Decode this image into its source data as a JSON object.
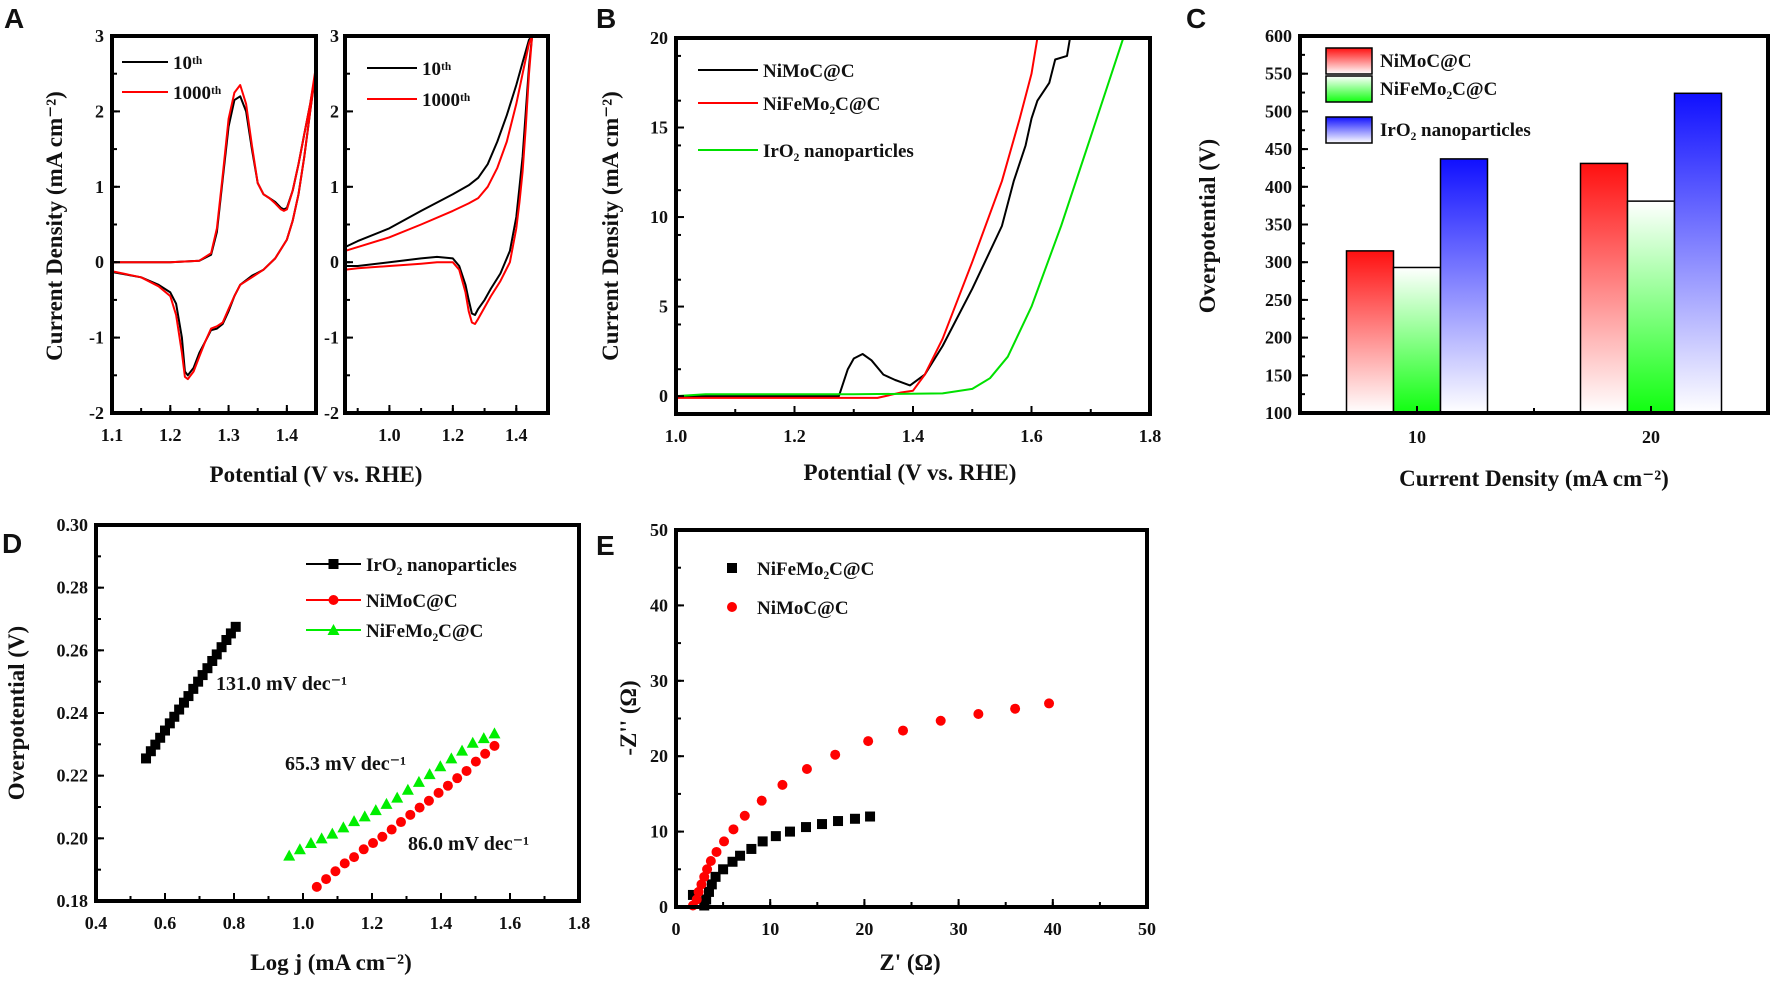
{
  "chart_data": [
    {
      "panel": "A",
      "type": "line",
      "xlabel": "Potential (V vs. RHE)",
      "ylabel": "Current Density (mA cm⁻²)",
      "xlim": [
        1.1,
        1.45
      ],
      "ylim": [
        -2,
        3
      ],
      "xticks": [
        "1.1",
        "1.2",
        "1.3",
        "1.4"
      ],
      "yticks": [
        "-2",
        "-1",
        "0",
        "1",
        "2",
        "3"
      ],
      "grid": false,
      "legend": "top-left",
      "series": [
        {
          "name": "10ᵗʰ",
          "color": "#000000",
          "x": [
            1.1,
            1.15,
            1.2,
            1.25,
            1.27,
            1.28,
            1.29,
            1.3,
            1.31,
            1.32,
            1.33,
            1.34,
            1.35,
            1.36,
            1.37,
            1.38,
            1.39,
            1.395,
            1.4,
            1.41,
            1.42,
            1.43,
            1.44,
            1.45,
            1.44,
            1.43,
            1.42,
            1.41,
            1.4,
            1.38,
            1.36,
            1.34,
            1.32,
            1.31,
            1.3,
            1.29,
            1.28,
            1.27,
            1.26,
            1.25,
            1.24,
            1.23,
            1.225,
            1.22,
            1.21,
            1.2,
            1.18,
            1.15,
            1.1
          ],
          "y": [
            0,
            0,
            0,
            0.02,
            0.1,
            0.4,
            1.1,
            1.8,
            2.15,
            2.2,
            2.0,
            1.5,
            1.05,
            0.9,
            0.85,
            0.8,
            0.72,
            0.7,
            0.72,
            0.95,
            1.3,
            1.7,
            2.1,
            2.55,
            2.0,
            1.4,
            0.9,
            0.55,
            0.3,
            0.05,
            -0.1,
            -0.18,
            -0.3,
            -0.45,
            -0.65,
            -0.82,
            -0.88,
            -0.9,
            -1.05,
            -1.2,
            -1.4,
            -1.5,
            -1.45,
            -1.0,
            -0.55,
            -0.4,
            -0.3,
            -0.2,
            -0.13
          ]
        },
        {
          "name": "1000ᵗʰ",
          "color": "#ff0000",
          "x": [
            1.1,
            1.15,
            1.2,
            1.25,
            1.27,
            1.28,
            1.29,
            1.3,
            1.31,
            1.32,
            1.33,
            1.34,
            1.35,
            1.36,
            1.37,
            1.38,
            1.39,
            1.395,
            1.4,
            1.41,
            1.42,
            1.43,
            1.44,
            1.45,
            1.44,
            1.43,
            1.42,
            1.41,
            1.4,
            1.38,
            1.36,
            1.34,
            1.32,
            1.31,
            1.3,
            1.29,
            1.28,
            1.27,
            1.26,
            1.25,
            1.24,
            1.23,
            1.225,
            1.22,
            1.21,
            1.2,
            1.18,
            1.15,
            1.1
          ],
          "y": [
            0,
            0,
            0,
            0.02,
            0.12,
            0.45,
            1.15,
            1.9,
            2.25,
            2.35,
            2.1,
            1.55,
            1.05,
            0.9,
            0.85,
            0.78,
            0.7,
            0.68,
            0.7,
            0.95,
            1.3,
            1.7,
            2.1,
            2.6,
            2.0,
            1.4,
            0.9,
            0.55,
            0.3,
            0.05,
            -0.1,
            -0.2,
            -0.3,
            -0.45,
            -0.62,
            -0.8,
            -0.85,
            -0.88,
            -1.05,
            -1.25,
            -1.45,
            -1.55,
            -1.52,
            -1.2,
            -0.7,
            -0.45,
            -0.32,
            -0.2,
            -0.12
          ]
        }
      ]
    },
    {
      "panel": "",
      "type": "line",
      "xlim": [
        0.86,
        1.5
      ],
      "ylim": [
        -2,
        3
      ],
      "xticks": [
        "1.0",
        "1.2",
        "1.4"
      ],
      "yticks": [
        "-2",
        "-1",
        "0",
        "1",
        "2",
        "3"
      ],
      "grid": false,
      "legend": "top-left",
      "series": [
        {
          "name": "10ᵗʰ",
          "color": "#000000",
          "x": [
            0.86,
            0.9,
            1.0,
            1.1,
            1.2,
            1.25,
            1.28,
            1.31,
            1.34,
            1.37,
            1.4,
            1.42,
            1.44,
            1.45,
            1.45,
            1.44,
            1.43,
            1.42,
            1.41,
            1.4,
            1.38,
            1.35,
            1.32,
            1.3,
            1.28,
            1.27,
            1.26,
            1.25,
            1.24,
            1.22,
            1.2,
            1.15,
            1.1,
            1.0,
            0.9,
            0.86
          ],
          "y": [
            0.2,
            0.28,
            0.45,
            0.68,
            0.9,
            1.02,
            1.12,
            1.3,
            1.6,
            1.95,
            2.35,
            2.65,
            2.95,
            3.0,
            3.0,
            2.6,
            2.0,
            1.4,
            1.0,
            0.6,
            0.15,
            -0.15,
            -0.35,
            -0.5,
            -0.62,
            -0.7,
            -0.68,
            -0.5,
            -0.3,
            -0.05,
            0.05,
            0.07,
            0.05,
            0.0,
            -0.05,
            -0.05
          ]
        },
        {
          "name": "1000ᵗʰ",
          "color": "#ff0000",
          "x": [
            0.86,
            0.9,
            1.0,
            1.1,
            1.2,
            1.25,
            1.28,
            1.31,
            1.34,
            1.37,
            1.4,
            1.42,
            1.44,
            1.45,
            1.45,
            1.44,
            1.43,
            1.42,
            1.41,
            1.4,
            1.38,
            1.35,
            1.32,
            1.3,
            1.28,
            1.27,
            1.26,
            1.25,
            1.24,
            1.22,
            1.2,
            1.15,
            1.1,
            1.0,
            0.9,
            0.86
          ],
          "y": [
            0.15,
            0.2,
            0.33,
            0.5,
            0.68,
            0.78,
            0.85,
            1.0,
            1.25,
            1.6,
            2.1,
            2.5,
            2.9,
            3.0,
            3.0,
            2.5,
            1.8,
            1.2,
            0.8,
            0.45,
            0.0,
            -0.25,
            -0.45,
            -0.6,
            -0.75,
            -0.82,
            -0.8,
            -0.65,
            -0.4,
            -0.1,
            0.0,
            0.0,
            -0.02,
            -0.05,
            -0.08,
            -0.1
          ]
        }
      ]
    },
    {
      "panel": "B",
      "type": "line",
      "xlabel": "Potential (V vs. RHE)",
      "ylabel": "Current Density (mA cm⁻²)",
      "xlim": [
        1.0,
        1.8
      ],
      "ylim": [
        -1,
        20
      ],
      "xticks": [
        "1.0",
        "1.2",
        "1.4",
        "1.6",
        "1.8"
      ],
      "yticks": [
        "0",
        "5",
        "10",
        "15",
        "20"
      ],
      "grid": false,
      "legend": "top-left",
      "series": [
        {
          "name": "NiMoC@C",
          "color": "#000000",
          "x": [
            1.0,
            1.1,
            1.2,
            1.26,
            1.275,
            1.29,
            1.3,
            1.315,
            1.33,
            1.35,
            1.37,
            1.395,
            1.42,
            1.45,
            1.5,
            1.55,
            1.57,
            1.59,
            1.6,
            1.61,
            1.63,
            1.64,
            1.66,
            1.665
          ],
          "y": [
            0,
            0,
            0,
            0,
            0,
            1.5,
            2.1,
            2.35,
            2.0,
            1.2,
            0.9,
            0.6,
            1.2,
            2.8,
            6.0,
            9.5,
            12.0,
            14.0,
            15.5,
            16.5,
            17.5,
            18.8,
            19.0,
            20.0
          ]
        },
        {
          "name": "NiFeMo₂C@C",
          "color": "#ff0000",
          "x": [
            1.0,
            1.2,
            1.34,
            1.38,
            1.4,
            1.42,
            1.45,
            1.5,
            1.55,
            1.58,
            1.6,
            1.61
          ],
          "y": [
            -0.1,
            -0.1,
            -0.1,
            0.2,
            0.3,
            1.2,
            3.2,
            7.5,
            12.0,
            15.5,
            18.0,
            20.0
          ]
        },
        {
          "name": "IrO₂ nanoparticles",
          "color": "#00e000",
          "x": [
            1.0,
            1.05,
            1.3,
            1.45,
            1.5,
            1.53,
            1.56,
            1.6,
            1.65,
            1.7,
            1.755
          ],
          "y": [
            0,
            0.1,
            0.1,
            0.15,
            0.4,
            1.0,
            2.2,
            5.0,
            9.5,
            14.5,
            20.0
          ]
        }
      ]
    },
    {
      "panel": "C",
      "type": "bar",
      "xlabel": "Current Density (mA cm⁻²)",
      "ylabel": "Overpotential (V)",
      "categories": [
        "10",
        "20"
      ],
      "ylim": [
        100,
        600
      ],
      "yticks": [
        "100",
        "150",
        "200",
        "250",
        "300",
        "350",
        "400",
        "450",
        "500",
        "550",
        "600"
      ],
      "grid": false,
      "legend": "top-left",
      "series": [
        {
          "name": "NiMoC@C",
          "color": "#ff1a1a",
          "values": [
            315,
            431
          ]
        },
        {
          "name": "NiFeMo₂C@C",
          "color": "#1aff1a",
          "values": [
            293,
            381
          ]
        },
        {
          "name": "IrO₂ nanoparticles",
          "color": "#1a1aff",
          "values": [
            437,
            524
          ]
        }
      ]
    },
    {
      "panel": "D",
      "type": "scatter",
      "xlabel": "Log j (mA cm⁻²)",
      "ylabel": "Overpotential (V)",
      "xlim": [
        0.4,
        1.8
      ],
      "ylim": [
        0.18,
        0.3
      ],
      "xticks": [
        "0.4",
        "0.6",
        "0.8",
        "1.0",
        "1.2",
        "1.4",
        "1.6",
        "1.8"
      ],
      "yticks": [
        "0.18",
        "0.20",
        "0.22",
        "0.24",
        "0.26",
        "0.28",
        "0.30"
      ],
      "grid": false,
      "legend": "top-right",
      "annotations": [
        "131.0 mV dec⁻¹",
        "65.3 mV dec⁻¹",
        "86.0 mV dec⁻¹"
      ],
      "series": [
        {
          "name": "IrO₂ nanoparticles",
          "color": "#000000",
          "marker": "square",
          "x": [
            0.545,
            0.559,
            0.572,
            0.586,
            0.6,
            0.614,
            0.627,
            0.641,
            0.655,
            0.668,
            0.682,
            0.696,
            0.709,
            0.723,
            0.737,
            0.75,
            0.764,
            0.778,
            0.791,
            0.805
          ],
          "y": [
            0.2255,
            0.2278,
            0.2299,
            0.2321,
            0.2344,
            0.2367,
            0.2388,
            0.2411,
            0.2433,
            0.2454,
            0.2477,
            0.25,
            0.2521,
            0.2543,
            0.2566,
            0.2587,
            0.261,
            0.2633,
            0.2654,
            0.2675
          ]
        },
        {
          "name": "NiMoC@C",
          "color": "#ff0000",
          "marker": "circle",
          "x": [
            1.04,
            1.067,
            1.094,
            1.121,
            1.148,
            1.176,
            1.203,
            1.23,
            1.257,
            1.284,
            1.311,
            1.338,
            1.365,
            1.393,
            1.42,
            1.447,
            1.474,
            1.501,
            1.528,
            1.555
          ],
          "y": [
            0.1845,
            0.187,
            0.1895,
            0.192,
            0.194,
            0.1965,
            0.1985,
            0.2005,
            0.2028,
            0.2052,
            0.2075,
            0.2098,
            0.212,
            0.2145,
            0.2168,
            0.2192,
            0.2215,
            0.2245,
            0.227,
            0.2295
          ]
        },
        {
          "name": "NiFeMo₂C@C",
          "color": "#00ee00",
          "marker": "triangle",
          "x": [
            0.96,
            0.991,
            1.023,
            1.054,
            1.085,
            1.117,
            1.148,
            1.179,
            1.211,
            1.242,
            1.273,
            1.304,
            1.336,
            1.367,
            1.398,
            1.43,
            1.461,
            1.492,
            1.524,
            1.555
          ],
          "y": [
            0.1945,
            0.1965,
            0.1985,
            0.2,
            0.2015,
            0.2035,
            0.2055,
            0.207,
            0.209,
            0.211,
            0.213,
            0.2155,
            0.218,
            0.2205,
            0.223,
            0.2255,
            0.228,
            0.2305,
            0.232,
            0.2335
          ]
        }
      ]
    },
    {
      "panel": "E",
      "type": "scatter",
      "xlabel": "Z' (Ω)",
      "ylabel": "-Z'' (Ω)",
      "xlim": [
        0,
        50
      ],
      "ylim": [
        0,
        50
      ],
      "xticks": [
        "0",
        "10",
        "20",
        "30",
        "40",
        "50"
      ],
      "yticks": [
        "0",
        "10",
        "20",
        "30",
        "40",
        "50"
      ],
      "grid": false,
      "legend": "top-left",
      "series": [
        {
          "name": "NiFeMo₂C@C",
          "color": "#000000",
          "marker": "square",
          "x": [
            1.8,
            3.0,
            3.2,
            3.5,
            3.8,
            4.2,
            5.0,
            6.0,
            6.8,
            8.0,
            9.2,
            10.6,
            12.1,
            13.8,
            15.5,
            17.2,
            19.0,
            20.6
          ],
          "y": [
            1.6,
            0.2,
            1.0,
            2.0,
            3.0,
            4.0,
            5.0,
            6.0,
            6.8,
            7.7,
            8.7,
            9.4,
            10.0,
            10.6,
            11.0,
            11.4,
            11.7,
            12.0
          ]
        },
        {
          "name": "NiMoC@C",
          "color": "#ff0000",
          "marker": "circle",
          "x": [
            1.8,
            2.2,
            2.4,
            2.7,
            3.0,
            3.3,
            3.7,
            4.3,
            5.1,
            6.1,
            7.3,
            9.1,
            11.3,
            13.9,
            16.9,
            20.4,
            24.1,
            28.1,
            32.1,
            36.0,
            39.6
          ],
          "y": [
            0.2,
            1.0,
            2.0,
            3.0,
            4.0,
            5.0,
            6.1,
            7.3,
            8.7,
            10.3,
            12.1,
            14.1,
            16.2,
            18.3,
            20.2,
            22.0,
            23.4,
            24.7,
            25.6,
            26.3,
            27.0
          ]
        }
      ]
    }
  ]
}
